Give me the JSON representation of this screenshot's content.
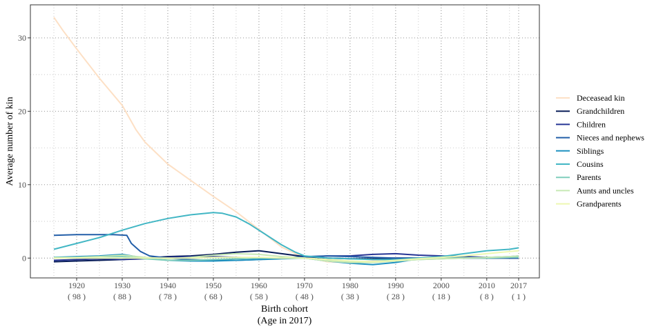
{
  "chart_data": {
    "type": "line",
    "xlabel": "Birth cohort",
    "xlabel_sub": "(Age in 2017)",
    "ylabel": "Average number of kin",
    "xlim": [
      1915,
      2017
    ],
    "ylim": [
      -2.7,
      34.5
    ],
    "x_ticks": [
      {
        "x": 1920,
        "label": "1920",
        "sub": "( 98 )"
      },
      {
        "x": 1930,
        "label": "1930",
        "sub": "( 88 )"
      },
      {
        "x": 1940,
        "label": "1940",
        "sub": "( 78 )"
      },
      {
        "x": 1950,
        "label": "1950",
        "sub": "( 68 )"
      },
      {
        "x": 1960,
        "label": "1960",
        "sub": "( 58 )"
      },
      {
        "x": 1970,
        "label": "1970",
        "sub": "( 48 )"
      },
      {
        "x": 1980,
        "label": "1980",
        "sub": "( 38 )"
      },
      {
        "x": 1990,
        "label": "1990",
        "sub": "( 28 )"
      },
      {
        "x": 2000,
        "label": "2000",
        "sub": "( 18 )"
      },
      {
        "x": 2010,
        "label": "2010",
        "sub": "( 8 )"
      },
      {
        "x": 2017,
        "label": "2017",
        "sub": "( 1 )"
      }
    ],
    "y_ticks": [
      {
        "y": 0,
        "label": "0"
      },
      {
        "y": 10,
        "label": "10"
      },
      {
        "y": 20,
        "label": "20"
      },
      {
        "y": 30,
        "label": "30"
      }
    ],
    "grid": "dotted",
    "legend_position": "right",
    "series": [
      {
        "name": "Deceasead kin",
        "color": "#fde0c5",
        "x": [
          1915,
          1917,
          1920,
          1925,
          1930,
          1933,
          1935,
          1940,
          1945,
          1950,
          1955,
          1960,
          1965,
          1968,
          1970,
          1975,
          1980,
          1985,
          1990,
          1995,
          2000,
          2005,
          2010,
          2015,
          2017
        ],
        "y": [
          32.8,
          31.0,
          28.5,
          24.5,
          20.8,
          17.5,
          15.8,
          12.8,
          10.6,
          8.4,
          6.3,
          3.9,
          1.5,
          0.6,
          0.2,
          -0.5,
          -0.6,
          -0.4,
          -0.3,
          -0.1,
          0.0,
          0.0,
          0.1,
          0.1,
          0.1
        ]
      },
      {
        "name": "Grandchildren",
        "color": "#081d58",
        "x": [
          1915,
          1920,
          1925,
          1930,
          1935,
          1940,
          1945,
          1950,
          1955,
          1960,
          1965,
          1970,
          1975,
          1980,
          1985,
          1990,
          1995,
          2000,
          2005,
          2010,
          2015,
          2017
        ],
        "y": [
          -0.5,
          -0.4,
          -0.3,
          -0.2,
          0.0,
          0.2,
          0.3,
          0.5,
          0.8,
          1.0,
          0.6,
          0.2,
          0.0,
          -0.1,
          -0.1,
          0.0,
          0.0,
          0.0,
          0.0,
          0.0,
          0.0,
          0.0
        ]
      },
      {
        "name": "Children",
        "color": "#253494",
        "x": [
          1915,
          1920,
          1925,
          1930,
          1935,
          1940,
          1945,
          1950,
          1955,
          1960,
          1965,
          1970,
          1975,
          1980,
          1985,
          1990,
          1995,
          2000,
          2005,
          2010,
          2015,
          2017
        ],
        "y": [
          -0.3,
          -0.2,
          -0.1,
          -0.2,
          -0.1,
          0.1,
          0.2,
          0.2,
          0.1,
          0.0,
          0.0,
          0.1,
          0.3,
          0.3,
          0.5,
          0.6,
          0.4,
          0.3,
          0.2,
          0.1,
          0.0,
          0.0
        ]
      },
      {
        "name": "Nieces and nephews",
        "color": "#225ea8",
        "x": [
          1915,
          1920,
          1925,
          1928,
          1931,
          1932,
          1934,
          1936,
          1940,
          1945,
          1950,
          1955,
          1960,
          1965,
          1970,
          1975,
          1980,
          1985,
          1990,
          1995,
          2000,
          2005,
          2010,
          2015,
          2017
        ],
        "y": [
          3.1,
          3.2,
          3.2,
          3.2,
          3.1,
          2.0,
          0.9,
          0.3,
          0.0,
          -0.2,
          -0.3,
          -0.3,
          -0.2,
          0.0,
          0.2,
          0.3,
          0.2,
          0.1,
          0.0,
          0.0,
          0.1,
          0.1,
          0.0,
          0.0,
          0.0
        ]
      },
      {
        "name": "Siblings",
        "color": "#1d91c0",
        "x": [
          1915,
          1920,
          1925,
          1930,
          1935,
          1940,
          1945,
          1950,
          1955,
          1960,
          1965,
          1970,
          1975,
          1980,
          1985,
          1990,
          1995,
          2000,
          2005,
          2010,
          2015,
          2017
        ],
        "y": [
          0.1,
          0.2,
          0.3,
          0.5,
          0.0,
          -0.3,
          -0.4,
          -0.4,
          -0.3,
          -0.2,
          -0.1,
          0.0,
          -0.4,
          -0.7,
          -0.9,
          -0.6,
          -0.1,
          0.0,
          0.0,
          0.1,
          0.2,
          0.3
        ]
      },
      {
        "name": "Cousins",
        "color": "#41b6c4",
        "x": [
          1915,
          1920,
          1925,
          1930,
          1935,
          1940,
          1945,
          1950,
          1952,
          1955,
          1958,
          1960,
          1963,
          1965,
          1968,
          1970,
          1975,
          1980,
          1985,
          1990,
          1995,
          2000,
          2005,
          2010,
          2015,
          2017
        ],
        "y": [
          1.2,
          2.0,
          2.8,
          3.8,
          4.7,
          5.4,
          5.9,
          6.2,
          6.1,
          5.6,
          4.6,
          3.8,
          2.6,
          1.8,
          0.8,
          0.3,
          0.0,
          -0.1,
          -0.2,
          -0.2,
          0.0,
          0.2,
          0.6,
          1.0,
          1.2,
          1.4
        ]
      },
      {
        "name": "Parents",
        "color": "#7fcdbb",
        "x": [
          1915,
          1920,
          1925,
          1930,
          1935,
          1940,
          1945,
          1950,
          1955,
          1960,
          1965,
          1970,
          1975,
          1980,
          1985,
          1990,
          1995,
          2000,
          2005,
          2010,
          2015,
          2017
        ],
        "y": [
          0.1,
          0.1,
          0.2,
          0.2,
          -0.1,
          -0.3,
          -0.3,
          -0.2,
          -0.1,
          0.0,
          0.0,
          0.0,
          -0.3,
          -0.5,
          -0.5,
          -0.4,
          -0.2,
          -0.1,
          0.0,
          0.0,
          0.1,
          0.1
        ]
      },
      {
        "name": "Aunts and uncles",
        "color": "#c7e9b4",
        "x": [
          1915,
          1920,
          1925,
          1930,
          1935,
          1940,
          1945,
          1950,
          1955,
          1960,
          1965,
          1970,
          1975,
          1980,
          1985,
          1990,
          1995,
          2000,
          2005,
          2010,
          2015,
          2017
        ],
        "y": [
          0.0,
          0.1,
          0.2,
          0.4,
          0.1,
          -0.1,
          0.1,
          0.4,
          0.6,
          0.5,
          0.2,
          0.0,
          -0.4,
          -0.6,
          -0.6,
          -0.4,
          -0.2,
          -0.1,
          0.0,
          0.1,
          0.2,
          0.3
        ]
      },
      {
        "name": "Grandparents",
        "color": "#edf8b1",
        "x": [
          1915,
          1920,
          1925,
          1930,
          1935,
          1940,
          1945,
          1950,
          1955,
          1960,
          1965,
          1970,
          1975,
          1980,
          1985,
          1990,
          1995,
          2000,
          2005,
          2010,
          2015,
          2017
        ],
        "y": [
          0.0,
          0.0,
          0.0,
          0.0,
          0.0,
          0.0,
          0.0,
          0.1,
          0.1,
          0.1,
          0.0,
          0.0,
          -0.2,
          -0.4,
          -0.5,
          -0.3,
          -0.1,
          0.1,
          0.3,
          0.6,
          0.9,
          1.0
        ]
      }
    ]
  }
}
